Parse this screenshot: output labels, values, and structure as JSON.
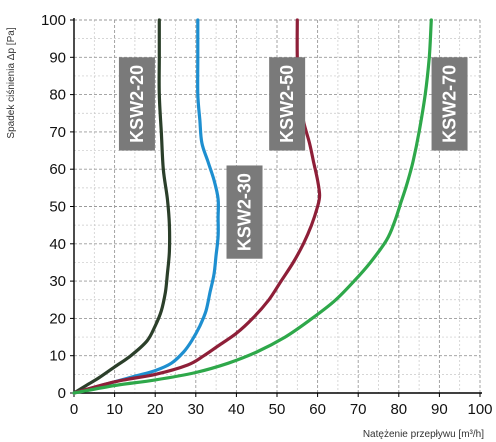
{
  "chart_data": {
    "type": "line",
    "xlabel": "Natężenie przepływu [m³/h]",
    "ylabel": "Spadek ciśnienia Δp [Pa]",
    "xlim": [
      0,
      100
    ],
    "ylim": [
      0,
      100
    ],
    "x_ticks": [
      0,
      10,
      20,
      30,
      40,
      50,
      60,
      70,
      80,
      90,
      100
    ],
    "y_ticks": [
      0,
      10,
      20,
      30,
      40,
      50,
      60,
      70,
      80,
      90,
      100
    ],
    "grid": true,
    "grid_style": "dashed",
    "label_color": "#7a7a7a",
    "label_text_color": "#ffffff",
    "series": [
      {
        "name": "KSW2-20",
        "color": "#2b3f2a",
        "points": [
          [
            0,
            0
          ],
          [
            3,
            2
          ],
          [
            6,
            4
          ],
          [
            10,
            7
          ],
          [
            14,
            10
          ],
          [
            18,
            14
          ],
          [
            20,
            18
          ],
          [
            21.5,
            22
          ],
          [
            22.5,
            27
          ],
          [
            23,
            32
          ],
          [
            23.5,
            38
          ],
          [
            23.5,
            45
          ],
          [
            23,
            52
          ],
          [
            22,
            60
          ],
          [
            21.5,
            70
          ],
          [
            21,
            80
          ],
          [
            21,
            90
          ],
          [
            21,
            100
          ]
        ]
      },
      {
        "name": "KSW2-30",
        "color": "#1e8fd0",
        "points": [
          [
            0,
            0
          ],
          [
            5,
            1.5
          ],
          [
            10,
            3
          ],
          [
            15,
            4.5
          ],
          [
            20,
            6
          ],
          [
            24,
            8
          ],
          [
            27,
            11
          ],
          [
            29,
            14
          ],
          [
            31,
            18
          ],
          [
            32.5,
            22
          ],
          [
            33.5,
            27
          ],
          [
            34.5,
            32
          ],
          [
            35,
            37
          ],
          [
            35.5,
            42
          ],
          [
            35.5,
            47
          ],
          [
            35.5,
            52
          ],
          [
            34.5,
            57
          ],
          [
            33,
            62
          ],
          [
            31.5,
            67
          ],
          [
            31,
            73
          ],
          [
            30.5,
            80
          ],
          [
            30.5,
            90
          ],
          [
            30.5,
            100
          ]
        ]
      },
      {
        "name": "KSW2-50",
        "color": "#8e1f38",
        "points": [
          [
            0,
            0
          ],
          [
            10,
            3
          ],
          [
            20,
            5
          ],
          [
            28,
            7.5
          ],
          [
            32,
            10
          ],
          [
            36,
            13
          ],
          [
            40,
            16
          ],
          [
            44,
            20
          ],
          [
            48,
            25
          ],
          [
            51,
            30
          ],
          [
            54,
            35
          ],
          [
            56.5,
            40
          ],
          [
            58.5,
            45
          ],
          [
            60,
            50
          ],
          [
            60.5,
            53
          ],
          [
            60,
            57
          ],
          [
            59,
            62
          ],
          [
            58,
            67
          ],
          [
            56.5,
            73
          ],
          [
            55.5,
            80
          ],
          [
            55,
            90
          ],
          [
            55,
            100
          ]
        ]
      },
      {
        "name": "KSW2-70",
        "color": "#2ea84a",
        "points": [
          [
            0,
            0
          ],
          [
            10,
            2
          ],
          [
            20,
            3.5
          ],
          [
            30,
            5.5
          ],
          [
            38,
            8
          ],
          [
            45,
            11
          ],
          [
            52,
            15
          ],
          [
            58,
            19.5
          ],
          [
            64,
            24.5
          ],
          [
            69,
            30
          ],
          [
            73,
            35
          ],
          [
            77,
            41
          ],
          [
            79,
            46
          ],
          [
            80.5,
            51
          ],
          [
            82,
            56
          ],
          [
            83.5,
            62
          ],
          [
            85,
            70
          ],
          [
            86.5,
            80
          ],
          [
            87.5,
            90
          ],
          [
            88,
            100
          ]
        ]
      }
    ],
    "series_labels": [
      {
        "series": "KSW2-20",
        "text": "KSW2-20",
        "anchor_x": 15.5,
        "anchor_top_y": 90,
        "anchor_bottom_y": 65
      },
      {
        "series": "KSW2-30",
        "text": "KSW2-30",
        "anchor_x": 42,
        "anchor_top_y": 61,
        "anchor_bottom_y": 36
      },
      {
        "series": "KSW2-50",
        "text": "KSW2-50",
        "anchor_x": 52.5,
        "anchor_top_y": 90,
        "anchor_bottom_y": 65
      },
      {
        "series": "KSW2-70",
        "text": "KSW2-70",
        "anchor_x": 92.5,
        "anchor_top_y": 90,
        "anchor_bottom_y": 65
      }
    ]
  }
}
